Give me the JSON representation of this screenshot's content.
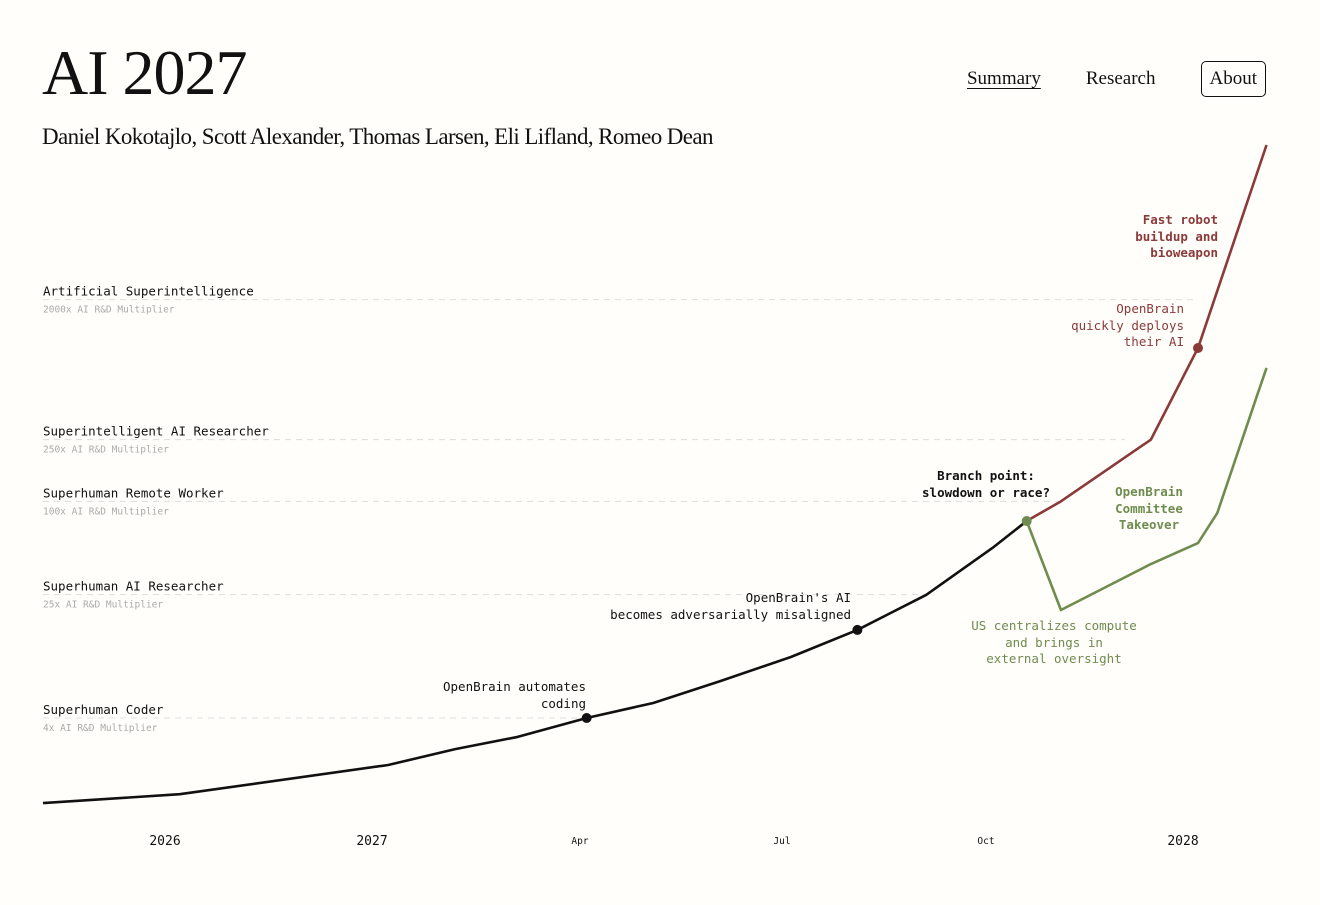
{
  "header": {
    "title": "AI 2027",
    "authors": "Daniel Kokotajlo, Scott Alexander, Thomas Larsen, Eli Lifland, Romeo Dean",
    "nav": [
      {
        "label": "Summary",
        "active": true
      },
      {
        "label": "Research",
        "active": false
      },
      {
        "label": "About",
        "active": false
      }
    ]
  },
  "colors": {
    "background": "#fffefa",
    "main": "#111111",
    "race": "#8b3a3a",
    "slowdown": "#6f8c50",
    "milestone_sub": "#aaaaaa",
    "gridline": "#dddddd"
  },
  "chart_data": {
    "type": "line",
    "x_type": "date",
    "y_scale": "log",
    "xlim": [
      "2025-06-01",
      "2028-02-09"
    ],
    "ylim": [
      1.13,
      20000
    ],
    "x_ticks": [
      {
        "date": "2026-01-01",
        "label": "2026"
      },
      {
        "date": "2027-01-01",
        "label": "2027"
      },
      {
        "date": "2027-04-01",
        "label": "Apr"
      },
      {
        "date": "2027-07-01",
        "label": "Jul"
      },
      {
        "date": "2027-10-01",
        "label": "Oct"
      },
      {
        "date": "2028-01-01",
        "label": "2028"
      }
    ],
    "milestones": [
      {
        "label": "Artificial Superintelligence",
        "sub": "2000x AI R&D Multiplier",
        "value": 2000
      },
      {
        "label": "Superintelligent AI Researcher",
        "sub": "250x AI R&D Multiplier",
        "value": 250
      },
      {
        "label": "Superhuman Remote Worker",
        "sub": "100x AI R&D Multiplier",
        "value": 100
      },
      {
        "label": "Superhuman AI Researcher",
        "sub": "25x AI R&D Multiplier",
        "value": 25
      },
      {
        "label": "Superhuman Coder",
        "sub": "4x AI R&D Multiplier",
        "value": 4
      }
    ],
    "series": [
      {
        "key": "main",
        "points": [
          [
            "2025-06-01",
            1.13
          ],
          [
            "2026-01-27",
            1.29
          ],
          [
            "2027-01-08",
            1.99
          ],
          [
            "2027-02-06",
            2.52
          ],
          [
            "2027-03-05",
            3.02
          ],
          [
            "2027-04-04",
            4
          ],
          [
            "2027-05-04",
            5.0
          ],
          [
            "2027-06-03",
            6.9
          ],
          [
            "2027-07-05",
            9.9
          ],
          [
            "2027-08-04",
            14.8
          ],
          [
            "2027-09-04",
            24.9
          ],
          [
            "2027-10-04",
            50
          ],
          [
            "2027-10-20",
            74.6
          ]
        ]
      },
      {
        "key": "race",
        "points": [
          [
            "2027-10-20",
            74.6
          ],
          [
            "2027-11-05",
            100
          ],
          [
            "2027-12-17",
            250
          ],
          [
            "2028-01-08",
            975
          ],
          [
            "2028-02-09",
            19900
          ]
        ]
      },
      {
        "key": "slowdown",
        "points": [
          [
            "2027-10-20",
            74.6
          ],
          [
            "2027-11-05",
            19.9
          ],
          [
            "2027-12-17",
            39.4
          ],
          [
            "2028-01-08",
            53.8
          ],
          [
            "2028-01-17",
            84
          ],
          [
            "2028-02-05",
            500
          ],
          [
            "2028-02-09",
            725
          ]
        ]
      }
    ],
    "events": [
      {
        "date": "2027-04-04",
        "value": 4,
        "series": "main",
        "label": "OpenBrain automates\ncoding"
      },
      {
        "date": "2027-08-04",
        "value": 14.8,
        "series": "main",
        "label": "OpenBrain's AI\nbecomes adversarially misaligned"
      },
      {
        "date": "2027-10-20",
        "value": 74.6,
        "series": "slowdown",
        "label": "Branch point:\nslowdown or race?"
      },
      {
        "date": "2028-01-08",
        "value": 975,
        "series": "race",
        "label": "OpenBrain\nquickly deploys\ntheir AI"
      }
    ],
    "annotations": {
      "race_end": "Fast robot\nbuildup and\nbioweapon",
      "slowdown_end": "OpenBrain\nCommittee\nTakeover",
      "slowdown_dip": "US centralizes compute\nand brings in\nexternal oversight"
    }
  }
}
